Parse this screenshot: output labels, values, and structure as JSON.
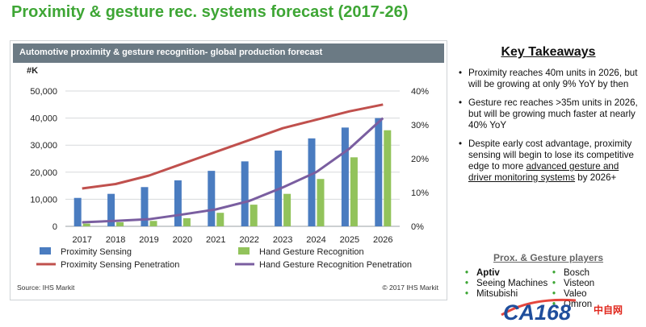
{
  "page_title": "Proximity & gesture rec. systems forecast (2017-26)",
  "chart_panel": {
    "header": "Automotive proximity & gesture recognition- global production forecast",
    "source": "Source: IHS Markit",
    "copyright": "© 2017 IHS Markit"
  },
  "chart_data": {
    "type": "bar",
    "categories": [
      "2017",
      "2018",
      "2019",
      "2020",
      "2021",
      "2022",
      "2023",
      "2024",
      "2025",
      "2026"
    ],
    "y_left_label": "#K",
    "ylim_left": [
      0,
      50000
    ],
    "yticks_left": [
      "0",
      "10,000",
      "20,000",
      "30,000",
      "40,000",
      "50,000"
    ],
    "ylim_right": [
      0,
      40
    ],
    "yticks_right": [
      "0%",
      "10%",
      "20%",
      "30%",
      "40%"
    ],
    "grid": true,
    "legend_position": "bottom",
    "series": [
      {
        "name": "Proximity Sensing",
        "kind": "bar",
        "axis": "left",
        "color": "#4a7cc0",
        "values": [
          10500,
          12000,
          14500,
          17000,
          20500,
          24000,
          28000,
          32500,
          36500,
          40000
        ]
      },
      {
        "name": "Hand Gesture Recognition",
        "kind": "bar",
        "axis": "left",
        "color": "#92c35b",
        "values": [
          1000,
          1500,
          2000,
          3000,
          5000,
          8000,
          12000,
          17500,
          25500,
          35500
        ]
      },
      {
        "name": "Proximity Sensing Penetration",
        "kind": "line",
        "axis": "right",
        "color": "#c0504d",
        "values": [
          11.2,
          12.5,
          15,
          18.5,
          22,
          25.5,
          29,
          31.5,
          34,
          36
        ]
      },
      {
        "name": "Hand Gesture Recognition Penetration",
        "kind": "line",
        "axis": "right",
        "color": "#7a5ea0",
        "values": [
          1.2,
          1.6,
          2.1,
          3.5,
          5,
          7.5,
          11.5,
          16,
          23,
          32
        ]
      }
    ]
  },
  "takeaways": {
    "title": "Key Takeaways",
    "items": [
      {
        "text": "Proximity reaches 40m units in 2026, but will be growing at only 9% YoY by then"
      },
      {
        "text": "Gesture rec reaches >35m units in 2026, but will be growing much faster at nearly 40% YoY"
      },
      {
        "text_before": "Despite early cost advantage, proximity sensing will begin to lose its competitive edge to more ",
        "link": "advanced gesture and driver monitoring systems",
        "text_after": " by 2026+"
      }
    ]
  },
  "players": {
    "title": "Prox. & Gesture players",
    "left": [
      "Aptiv",
      "Seeing Machines",
      "Mitsubishi"
    ],
    "right": [
      "Bosch",
      "Visteon",
      "Valeo",
      "Omron"
    ]
  },
  "watermark": {
    "brand": "CA168",
    "suffix": "中自网",
    "accent": "#e0261b",
    "brand_color": "#1f4e9c"
  }
}
